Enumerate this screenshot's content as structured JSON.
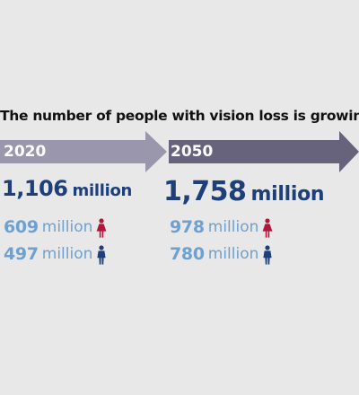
{
  "headline": "The number of people with vision loss is growing",
  "colors": {
    "background": "#e8e8e8",
    "arrow_2020": "#9a96ab",
    "arrow_2050": "#68637c",
    "total_text": "#1d3f7a",
    "sub_text": "#6fa1d0",
    "female_icon": "#b3163d",
    "male_icon": "#1d3f7a"
  },
  "periods": [
    {
      "year": "2020",
      "total": {
        "value": "1,106",
        "unit": "million"
      },
      "female": {
        "value": "609",
        "unit": "million",
        "icon": "female-icon"
      },
      "male": {
        "value": "497",
        "unit": "million",
        "icon": "male-icon"
      }
    },
    {
      "year": "2050",
      "total": {
        "value": "1,758",
        "unit": "million"
      },
      "female": {
        "value": "978",
        "unit": "million",
        "icon": "female-icon"
      },
      "male": {
        "value": "780",
        "unit": "million",
        "icon": "male-icon"
      }
    }
  ]
}
